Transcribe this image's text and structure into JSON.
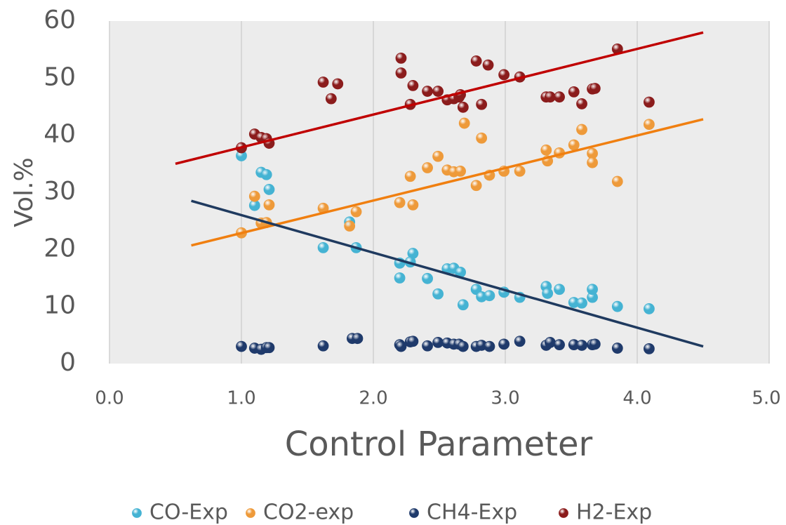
{
  "chart_data": {
    "type": "scatter",
    "x_label": "Control Parameter",
    "y_label": "Vol.%",
    "xlim": [
      0,
      5
    ],
    "ylim": [
      0,
      60
    ],
    "xticks": [
      {
        "value": 0,
        "label": "0.0"
      },
      {
        "value": 1,
        "label": "1.0"
      },
      {
        "value": 2,
        "label": "2.0"
      },
      {
        "value": 3,
        "label": "3.0"
      },
      {
        "value": 4,
        "label": "4.0"
      },
      {
        "value": 5,
        "label": "5.0"
      }
    ],
    "yticks": [
      0,
      10,
      20,
      30,
      40,
      50,
      60
    ],
    "grid": true,
    "legend": "bottom",
    "series": [
      {
        "name": "CO-Exp",
        "color": "#45b3d3",
        "x": [
          1.0,
          1.15,
          1.19,
          1.1,
          1.21,
          1.62,
          1.82,
          1.87,
          2.2,
          2.2,
          2.3,
          2.28,
          2.41,
          2.49,
          2.56,
          2.61,
          2.66,
          2.68,
          2.78,
          2.82,
          2.88,
          2.99,
          3.11,
          3.31,
          3.32,
          3.41,
          3.52,
          3.58,
          3.66,
          3.66,
          3.85,
          4.09
        ],
        "y": [
          36.4,
          33.5,
          33.1,
          27.7,
          30.5,
          20.3,
          24.8,
          20.3,
          17.6,
          15.0,
          19.3,
          17.8,
          14.9,
          12.2,
          16.6,
          16.7,
          16.0,
          10.3,
          13.0,
          11.7,
          11.9,
          12.5,
          11.6,
          13.5,
          12.3,
          13.0,
          10.7,
          10.6,
          11.6,
          13.0,
          10.0,
          9.6
        ]
      },
      {
        "name": "CO2-exp",
        "color": "#ee9a3a",
        "x": [
          1.0,
          1.1,
          1.21,
          1.15,
          1.19,
          1.62,
          1.82,
          1.87,
          2.2,
          2.28,
          2.3,
          2.41,
          2.49,
          2.56,
          2.61,
          2.66,
          2.69,
          2.78,
          2.82,
          2.88,
          2.99,
          3.11,
          3.31,
          3.32,
          3.41,
          3.52,
          3.58,
          3.66,
          3.66,
          3.85,
          4.09
        ],
        "y": [
          22.9,
          29.3,
          27.8,
          24.6,
          24.7,
          27.2,
          24.1,
          26.6,
          28.2,
          32.8,
          27.8,
          34.3,
          36.3,
          33.9,
          33.6,
          33.7,
          42.1,
          31.2,
          39.5,
          33.0,
          33.7,
          33.7,
          37.4,
          35.5,
          36.9,
          38.3,
          41.0,
          36.8,
          35.2,
          31.9,
          41.9
        ],
        "trend": {
          "color": "#f07f10",
          "x": [
            0.62,
            4.5
          ],
          "y": [
            20.7,
            42.8
          ]
        }
      },
      {
        "name": "CH4-Exp",
        "color": "#1f3a6b",
        "x": [
          1.0,
          1.1,
          1.15,
          1.19,
          1.21,
          1.62,
          1.84,
          1.88,
          2.2,
          2.21,
          2.28,
          2.3,
          2.41,
          2.49,
          2.56,
          2.61,
          2.65,
          2.68,
          2.78,
          2.82,
          2.88,
          2.99,
          3.11,
          3.31,
          3.34,
          3.41,
          3.52,
          3.58,
          3.66,
          3.68,
          3.85,
          4.09
        ],
        "y": [
          3.0,
          2.7,
          2.5,
          2.8,
          2.8,
          3.1,
          4.4,
          4.4,
          3.3,
          3.0,
          3.8,
          3.9,
          3.1,
          3.7,
          3.6,
          3.4,
          3.4,
          3.0,
          3.0,
          3.2,
          3.0,
          3.4,
          3.9,
          3.2,
          3.7,
          3.3,
          3.3,
          3.2,
          3.3,
          3.4,
          2.7,
          2.6
        ],
        "trend": {
          "color": "#1f3a5f",
          "x": [
            0.62,
            4.5
          ],
          "y": [
            28.5,
            3.0
          ]
        }
      },
      {
        "name": "H2-Exp",
        "color": "#8b1c1c",
        "x": [
          1.0,
          1.1,
          1.15,
          1.19,
          1.21,
          1.62,
          1.68,
          1.73,
          2.21,
          2.21,
          2.28,
          2.3,
          2.41,
          2.49,
          2.56,
          2.61,
          2.65,
          2.66,
          2.68,
          2.78,
          2.87,
          2.82,
          2.99,
          3.11,
          3.31,
          3.34,
          3.41,
          3.52,
          3.58,
          3.66,
          3.68,
          3.85,
          4.09
        ],
        "y": [
          37.8,
          40.2,
          39.6,
          39.4,
          38.6,
          49.3,
          46.4,
          49.0,
          53.5,
          50.9,
          45.4,
          48.7,
          47.7,
          47.7,
          46.2,
          46.4,
          46.7,
          47.1,
          44.9,
          53.0,
          52.3,
          45.4,
          50.6,
          50.2,
          46.7,
          46.7,
          46.7,
          47.6,
          45.5,
          48.1,
          48.2,
          55.1,
          45.8
        ],
        "trend": {
          "color": "#c00000",
          "x": [
            0.5,
            4.5
          ],
          "y": [
            35.0,
            58.0
          ]
        }
      }
    ]
  }
}
